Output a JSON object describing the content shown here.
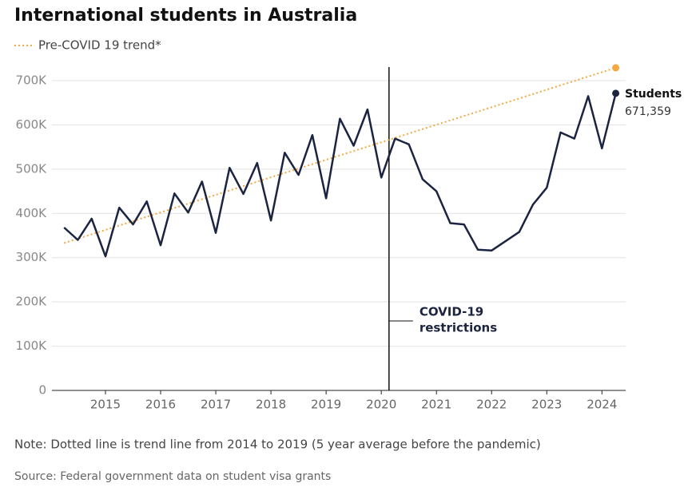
{
  "chart_data": {
    "type": "line",
    "title": "International students in Australia",
    "note": "Note: Dotted line is trend line from 2014 to 2019 (5 year average before the pandemic)",
    "source": "Source: Federal government data on student visa grants",
    "x": [
      2014.25,
      2014.5,
      2014.75,
      2015,
      2015.25,
      2015.5,
      2015.75,
      2016,
      2016.25,
      2016.5,
      2016.75,
      2017,
      2017.25,
      2017.5,
      2017.75,
      2018,
      2018.25,
      2018.5,
      2018.75,
      2019,
      2019.25,
      2019.5,
      2019.75,
      2020,
      2020.25,
      2020.5,
      2020.75,
      2021,
      2021.25,
      2021.5,
      2021.75,
      2022,
      2022.25,
      2022.5,
      2022.75,
      2023,
      2023.25,
      2023.5,
      2023.75,
      2024,
      2024.25
    ],
    "series": [
      {
        "name": "Students",
        "color": "#1b2440",
        "style": "solid",
        "values": [
          368000,
          340000,
          388000,
          303000,
          413000,
          375000,
          427000,
          328000,
          445000,
          402000,
          472000,
          356000,
          503000,
          444000,
          514000,
          384000,
          537000,
          487000,
          577000,
          434000,
          614000,
          553000,
          635000,
          481000,
          569000,
          556000,
          477000,
          450000,
          378000,
          375000,
          318000,
          316000,
          337000,
          358000,
          420000,
          458000,
          583000,
          569000,
          665000,
          547000,
          671359
        ],
        "value_labels": [
          null,
          null,
          null,
          null,
          null,
          null,
          null,
          null,
          null,
          null,
          null,
          null,
          null,
          null,
          null,
          null,
          null,
          null,
          null,
          null,
          null,
          null,
          null,
          null,
          null,
          null,
          null,
          null,
          null,
          null,
          null,
          null,
          null,
          null,
          null,
          null,
          null,
          null,
          null,
          null,
          "671,359"
        ]
      },
      {
        "name": "Pre-COVID 19 trend*",
        "color": "#f5a742",
        "style": "dotted",
        "x": [
          2014.25,
          2024.25
        ],
        "values": [
          333000,
          729000
        ]
      }
    ],
    "annotations": [
      {
        "x": 2020.14,
        "lines": [
          "COVID-19",
          "restrictions"
        ]
      }
    ],
    "xlim": [
      2014.03,
      2024.43
    ],
    "xticks": [
      2015,
      2016,
      2017,
      2018,
      2019,
      2020,
      2021,
      2022,
      2023,
      2024
    ],
    "ylim": [
      0,
      700000
    ],
    "yticks": [
      0,
      {
        "value": 100000,
        "label": "100K"
      },
      {
        "value": 200000,
        "label": "200K"
      },
      {
        "value": 300000,
        "label": "300K"
      },
      {
        "value": 400000,
        "label": "400K"
      },
      {
        "value": 500000,
        "label": "500K"
      },
      {
        "value": 600000,
        "label": "600K"
      },
      {
        "value": 700000,
        "label": "700K"
      }
    ],
    "grid": true
  }
}
